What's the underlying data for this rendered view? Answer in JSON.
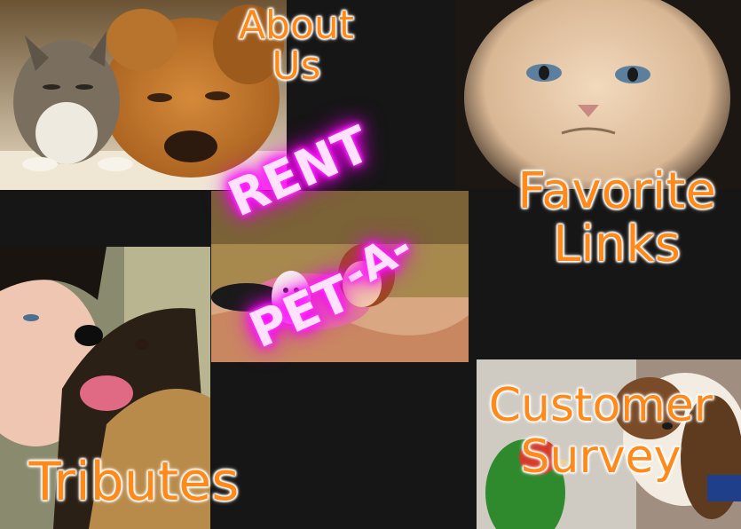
{
  "site": {
    "logo": {
      "line1": "RENT",
      "line2": "-A-",
      "line3": "PET",
      "glow_color": "#ff00ff"
    }
  },
  "nav": {
    "about": {
      "line1": "About",
      "line2": "Us"
    },
    "favorite": {
      "line1": "Favorite",
      "line2": "Links"
    },
    "tributes": {
      "line1": "Tributes"
    },
    "survey": {
      "line1": "Customer",
      "line2": "Survey"
    }
  },
  "colors": {
    "background": "#161616",
    "link_text": "#ff8a1c",
    "link_outline": "#ffffff"
  },
  "photos": [
    {
      "name": "cat-and-dog-photo"
    },
    {
      "name": "grumpy-cat-photo"
    },
    {
      "name": "woman-with-dog-photo"
    },
    {
      "name": "woman-and-shepherd-photo"
    },
    {
      "name": "parrot-and-hound-photo"
    }
  ]
}
